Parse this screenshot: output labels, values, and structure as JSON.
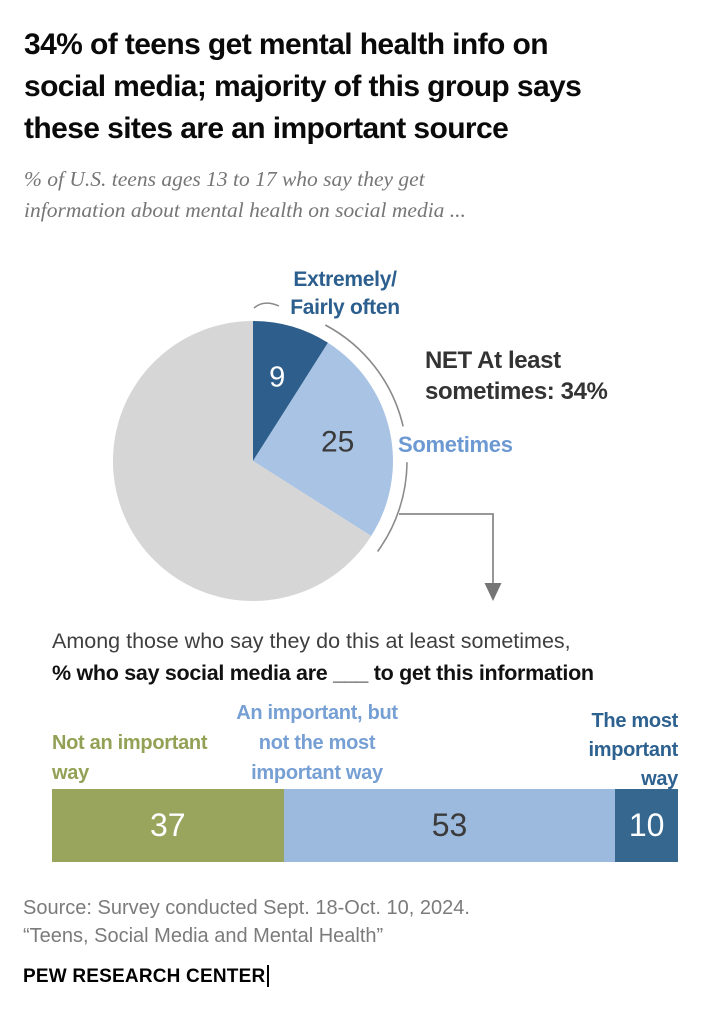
{
  "header": {
    "title": "34% of teens get mental health info on\nsocial media; majority of this group says\nthese sites are an important source",
    "subtitle": "% of U.S. teens ages 13 to 17 who say they get\ninformation about mental health on social media ..."
  },
  "pie_section": {
    "slice1_label": "Extremely/\nFairly often",
    "net_label": "NET At least\nsometimes: 34%",
    "slice2_label": "Sometimes"
  },
  "bar_section": {
    "heading_line1": "Among those who say they do this at least sometimes,",
    "heading_line2": "% who say social media are ___ to get this information",
    "label_left": "Not an important\nway",
    "label_mid": "An important, but\nnot the most\nimportant way",
    "label_right": "The most\nimportant\nway"
  },
  "footer": {
    "source": "Source: Survey conducted Sept. 18-Oct. 10, 2024.\n“Teens, Social Media and Mental Health”",
    "brand": "PEW RESEARCH CENTER"
  },
  "colors": {
    "dark_blue": "#2e5f8c",
    "light_blue_pie": "#a9c3e4",
    "gray_pie": "#d6d6d6",
    "olive_green": "#99a45d",
    "light_blue_bar": "#9cbade",
    "dark_blue_bar": "#36688f",
    "annotation_line": "#8a8a8a"
  },
  "chart_data": [
    {
      "type": "pie",
      "title": "% of U.S. teens ages 13 to 17 who say they get information about mental health on social media ...",
      "annotation": "NET At least sometimes: 34%",
      "slices": [
        {
          "label": "Extremely/Fairly often",
          "value": 9,
          "color": "#2e5f8c",
          "value_color": "#ffffff",
          "value_font": 29
        },
        {
          "label": "Sometimes",
          "value": 25,
          "color": "#a9c3e4",
          "value_color": "#3a3a3a",
          "value_font": 30
        },
        {
          "label": "",
          "value": 66,
          "color": "#d6d6d6",
          "value_color": "",
          "value_font": 0
        }
      ]
    },
    {
      "type": "bar",
      "stacked": true,
      "orientation": "horizontal",
      "title": "Among those who say they do this at least sometimes, % who say social media are ___ to get this information",
      "categories": [
        "Not an important way",
        "An important, but not the most important way",
        "The most important way"
      ],
      "segments": [
        {
          "label": "Not an important way",
          "value": 37,
          "color": "#99a45d",
          "value_color": "#ffffff"
        },
        {
          "label": "An important, but not the most important way",
          "value": 53,
          "color": "#9cbade",
          "value_color": "#3b3b3b"
        },
        {
          "label": "The most important way",
          "value": 10,
          "color": "#36688f",
          "value_color": "#ffffff"
        }
      ]
    }
  ]
}
